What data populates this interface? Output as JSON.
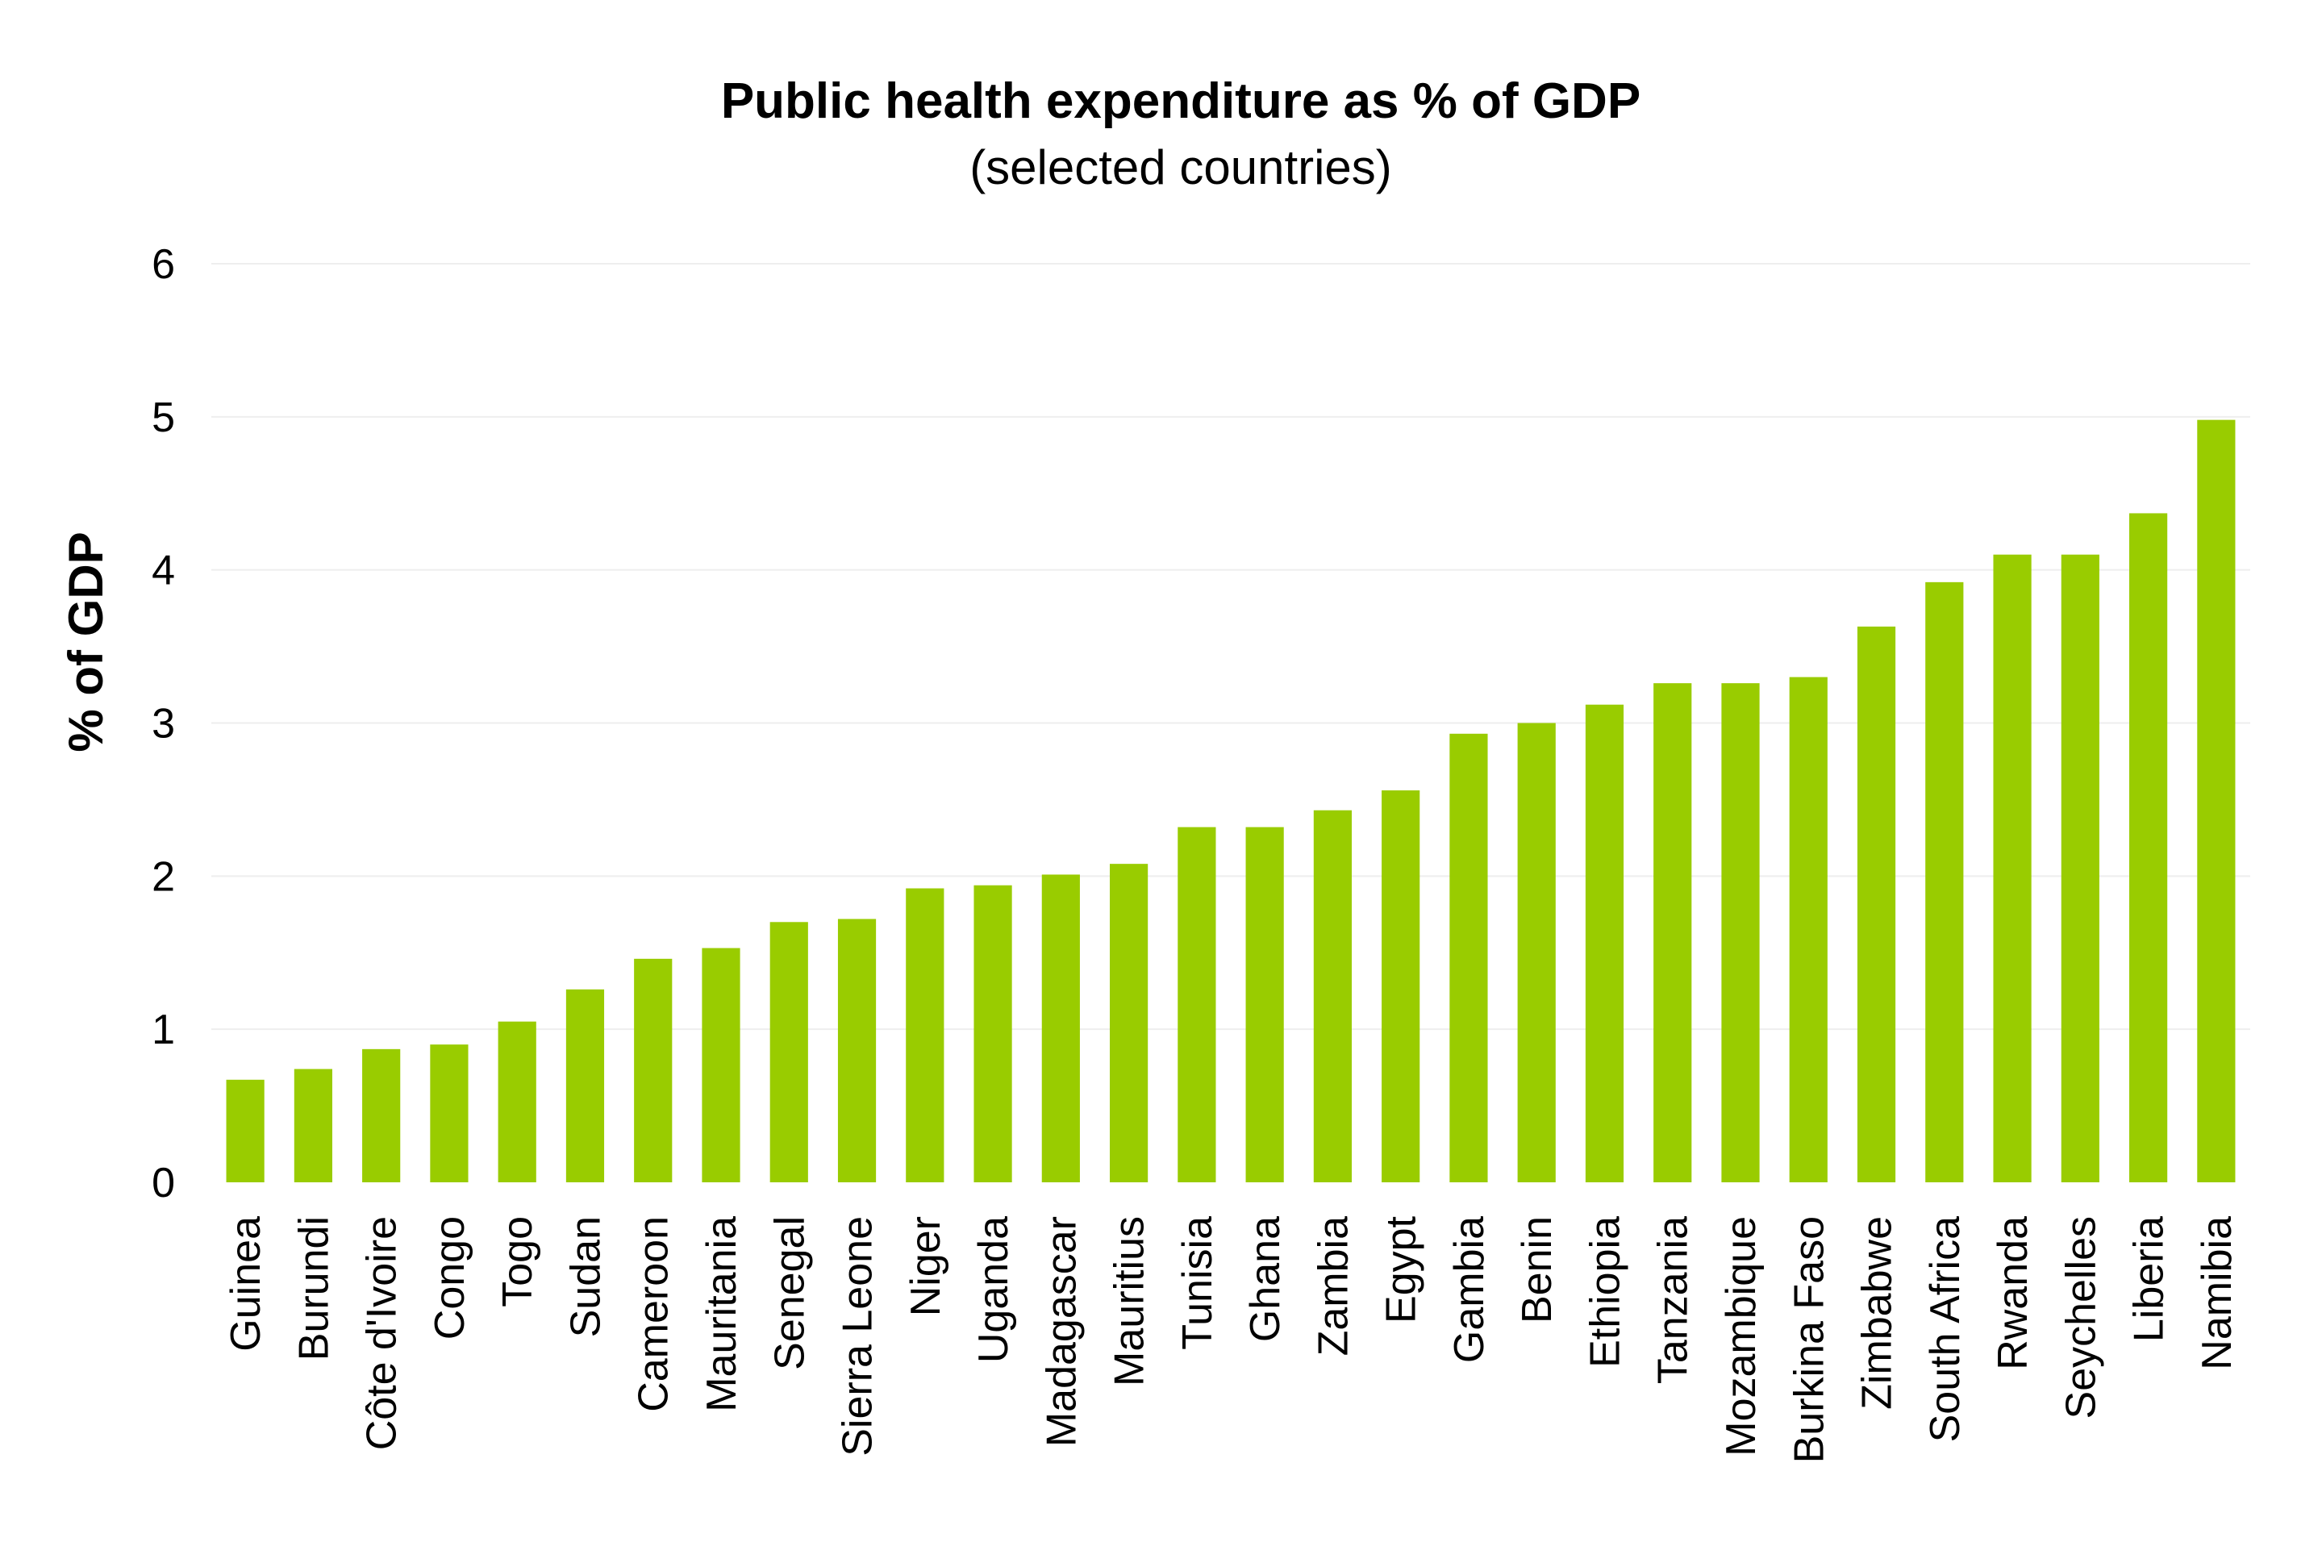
{
  "chart_data": {
    "type": "bar",
    "title": "Public health expenditure as % of GDP",
    "subtitle": "(selected countries)",
    "xlabel": "",
    "ylabel": "% of GDP",
    "ylim": [
      0,
      6
    ],
    "yticks": [
      "0",
      "1",
      "2",
      "3",
      "4",
      "5",
      "6"
    ],
    "grid": "horizontal",
    "bar_color": "#99cc00",
    "categories": [
      "Guinea",
      "Burundi",
      "Côte d'Ivoire",
      "Congo",
      "Togo",
      "Sudan",
      "Cameroon",
      "Mauritania",
      "Senegal",
      "Sierra Leone",
      "Niger",
      "Uganda",
      "Madagascar",
      "Mauritius",
      "Tunisia",
      "Ghana",
      "Zambia",
      "Egypt",
      "Gambia",
      "Benin",
      "Ethiopia",
      "Tanzania",
      "Mozambique",
      "Burkina Faso",
      "Zimbabwe",
      "South Africa",
      "Rwanda",
      "Seychelles",
      "Liberia",
      "Namibia"
    ],
    "values": [
      0.67,
      0.74,
      0.87,
      0.9,
      1.05,
      1.26,
      1.46,
      1.53,
      1.7,
      1.72,
      1.92,
      1.94,
      2.01,
      2.08,
      2.32,
      2.32,
      2.43,
      2.56,
      2.93,
      3.0,
      3.12,
      3.26,
      3.26,
      3.3,
      3.63,
      3.92,
      4.1,
      4.1,
      4.37,
      4.98
    ]
  }
}
